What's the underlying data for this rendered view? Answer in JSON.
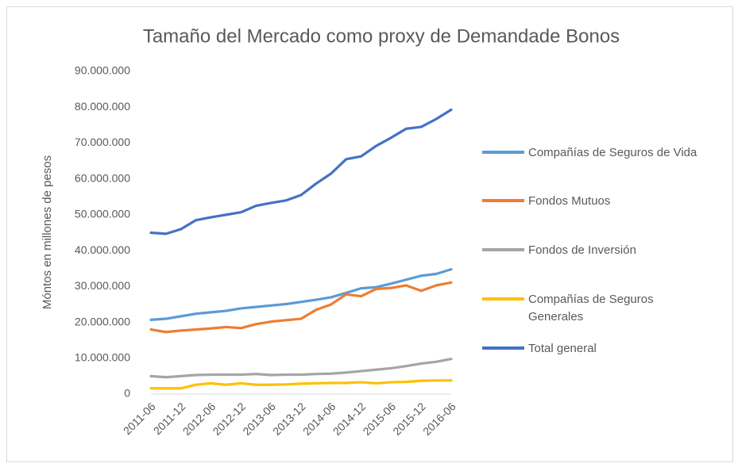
{
  "chart_data": {
    "type": "line",
    "title": "Tamaño del Mercado como proxy de Demandade Bonos",
    "y_label": "Móntos en millones  de  pesos",
    "categories": [
      "2011-06",
      null,
      "2011-12",
      null,
      "2012-06",
      null,
      "2012-12",
      null,
      "2013-06",
      null,
      "2013-12",
      null,
      "2014-06",
      null,
      "2014-12",
      null,
      "2015-06",
      null,
      "2015-12",
      null,
      "2016-06"
    ],
    "series": [
      {
        "name": "Compañías de Seguros de Vida",
        "color": "#5b9bd5",
        "values": [
          20700000,
          21000000,
          21700000,
          22400000,
          22800000,
          23200000,
          23900000,
          24300000,
          24700000,
          25100000,
          25700000,
          26300000,
          27000000,
          28200000,
          29500000,
          29800000,
          30800000,
          31900000,
          33000000,
          33500000,
          34800000
        ]
      },
      {
        "name": "Fondos Mutuos",
        "color": "#ed7d31",
        "values": [
          18000000,
          17300000,
          17700000,
          18000000,
          18300000,
          18700000,
          18400000,
          19500000,
          20200000,
          20600000,
          21000000,
          23500000,
          25000000,
          27800000,
          27300000,
          29300000,
          29600000,
          30300000,
          28800000,
          30300000,
          31100000
        ]
      },
      {
        "name": "Fondos de Inversión",
        "color": "#a5a5a5",
        "values": [
          5000000,
          4700000,
          5000000,
          5300000,
          5400000,
          5400000,
          5400000,
          5600000,
          5300000,
          5400000,
          5400000,
          5600000,
          5700000,
          6000000,
          6400000,
          6800000,
          7200000,
          7800000,
          8500000,
          9000000,
          9800000
        ]
      },
      {
        "name": "Compañías de Seguros Generales",
        "color": "#ffc000",
        "values": [
          1600000,
          1600000,
          1600000,
          2600000,
          3000000,
          2600000,
          3000000,
          2600000,
          2600000,
          2700000,
          2900000,
          3000000,
          3100000,
          3100000,
          3300000,
          3000000,
          3300000,
          3400000,
          3700000,
          3800000,
          3800000
        ]
      },
      {
        "name": "Total general",
        "color": "#4472c4",
        "values": [
          45000000,
          44700000,
          46000000,
          48500000,
          49300000,
          50000000,
          50700000,
          52500000,
          53300000,
          54000000,
          55500000,
          58700000,
          61500000,
          65500000,
          66300000,
          69200000,
          71500000,
          74000000,
          74500000,
          76700000,
          79300000
        ]
      }
    ],
    "ylim": [
      0,
      90000000
    ],
    "yticks": [
      0,
      {
        "value": 10000000,
        "label": "10.000.000"
      },
      {
        "value": 20000000,
        "label": "20.000.000"
      },
      {
        "value": 30000000,
        "label": "30.000.000"
      },
      {
        "value": 40000000,
        "label": "40.000.000"
      },
      {
        "value": 50000000,
        "label": "50.000.000"
      },
      {
        "value": 60000000,
        "label": "60.000.000"
      },
      {
        "value": 70000000,
        "label": "70.000.000"
      },
      {
        "value": 80000000,
        "label": "80.000.000"
      },
      {
        "value": 90000000,
        "label": "90.000.000"
      }
    ],
    "grid": false,
    "legend": "right"
  }
}
